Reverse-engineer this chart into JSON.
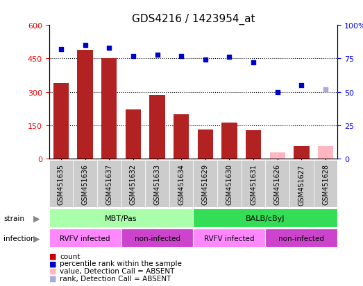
{
  "title": "GDS4216 / 1423954_at",
  "samples": [
    "GSM451635",
    "GSM451636",
    "GSM451637",
    "GSM451632",
    "GSM451633",
    "GSM451634",
    "GSM451629",
    "GSM451630",
    "GSM451631",
    "GSM451626",
    "GSM451627",
    "GSM451628"
  ],
  "bar_values": [
    340,
    490,
    450,
    220,
    285,
    200,
    130,
    160,
    128,
    0,
    55,
    0
  ],
  "bar_absent": [
    false,
    false,
    false,
    false,
    false,
    false,
    false,
    false,
    false,
    true,
    false,
    true
  ],
  "absent_bar_values": [
    0,
    0,
    0,
    0,
    0,
    0,
    0,
    0,
    0,
    28,
    0,
    55
  ],
  "rank_values": [
    82,
    85,
    83,
    77,
    78,
    77,
    74,
    76,
    72,
    50,
    55,
    52
  ],
  "rank_absent": [
    false,
    false,
    false,
    false,
    false,
    false,
    false,
    false,
    false,
    false,
    false,
    true
  ],
  "absent_rank_values": [
    0,
    0,
    0,
    0,
    0,
    0,
    0,
    0,
    0,
    0,
    0,
    52
  ],
  "bar_color": "#b22222",
  "bar_absent_color": "#ffb6c1",
  "rank_color": "#0000cc",
  "rank_absent_color": "#aaaadd",
  "ylim_left": [
    0,
    600
  ],
  "ylim_right": [
    0,
    100
  ],
  "yticks_left": [
    0,
    150,
    300,
    450,
    600
  ],
  "yticks_right": [
    0,
    25,
    50,
    75,
    100
  ],
  "strain_labels": [
    {
      "text": "MBT/Pas",
      "start": 0,
      "end": 6,
      "color": "#aaffaa"
    },
    {
      "text": "BALB/cByJ",
      "start": 6,
      "end": 12,
      "color": "#33dd55"
    }
  ],
  "infection_labels": [
    {
      "text": "RVFV infected",
      "start": 0,
      "end": 3,
      "color": "#ff88ff"
    },
    {
      "text": "non-infected",
      "start": 3,
      "end": 6,
      "color": "#cc44cc"
    },
    {
      "text": "RVFV infected",
      "start": 6,
      "end": 9,
      "color": "#ff88ff"
    },
    {
      "text": "non-infected",
      "start": 9,
      "end": 12,
      "color": "#cc44cc"
    }
  ],
  "legend_items": [
    {
      "label": "count",
      "color": "#cc0000"
    },
    {
      "label": "percentile rank within the sample",
      "color": "#0000cc"
    },
    {
      "label": "value, Detection Call = ABSENT",
      "color": "#ffb6c1"
    },
    {
      "label": "rank, Detection Call = ABSENT",
      "color": "#aaaadd"
    }
  ],
  "xtick_bg": "#cccccc"
}
